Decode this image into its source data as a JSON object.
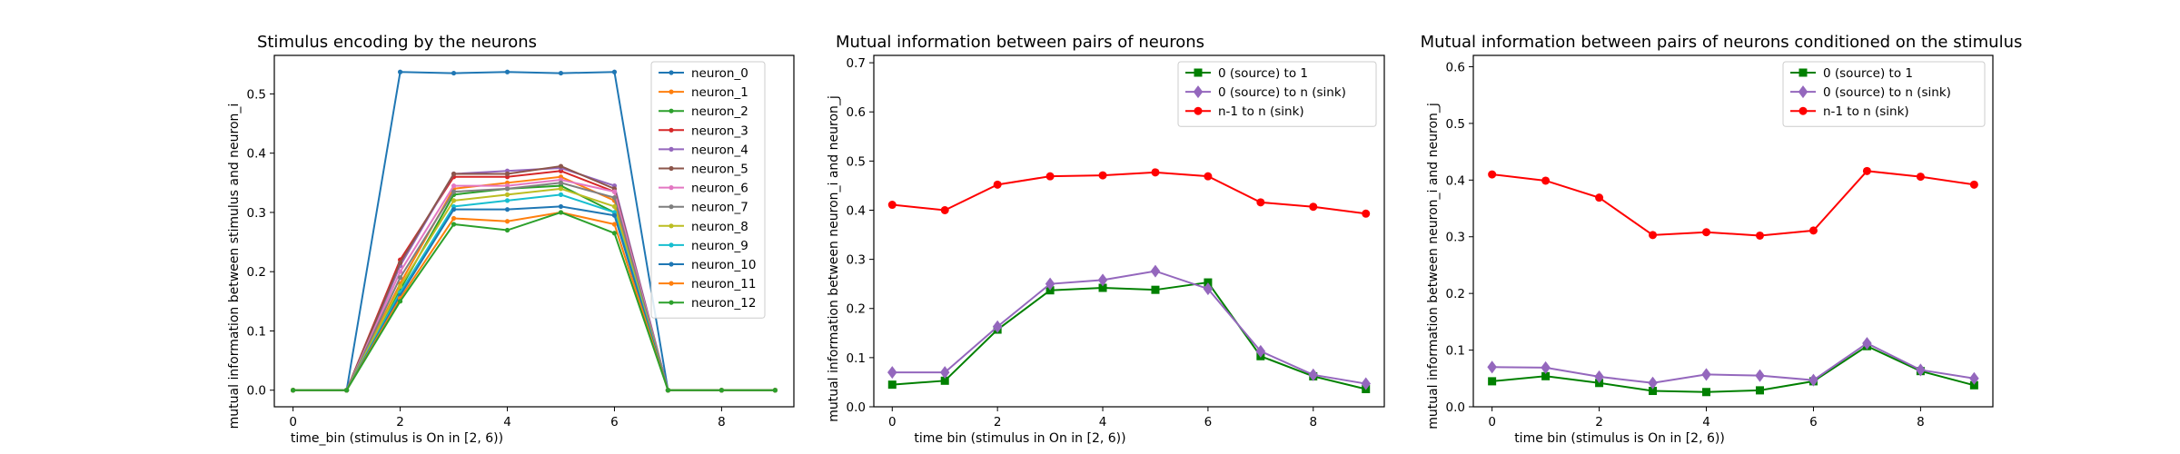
{
  "chart_data": [
    {
      "type": "line",
      "title": "Stimulus encoding by the neurons",
      "xlabel": "time_bin (stimulus is On in [2, 6))",
      "ylabel": "mutual information between stimulus and neuron_i",
      "xlim": [
        -0.35,
        9.35
      ],
      "ylim": [
        -0.028,
        0.565
      ],
      "xticks": [
        0,
        2,
        4,
        6,
        8
      ],
      "yticks": [
        0.0,
        0.1,
        0.2,
        0.3,
        0.4,
        0.5
      ],
      "legend_position": "upper-right",
      "x": [
        0,
        1,
        2,
        3,
        4,
        5,
        6,
        7,
        8,
        9
      ],
      "series": [
        {
          "name": "neuron_0",
          "color": "#1f77b4",
          "marker": "dot",
          "values": [
            0,
            0,
            0.537,
            0.535,
            0.537,
            0.535,
            0.537,
            0,
            0,
            0
          ]
        },
        {
          "name": "neuron_1",
          "color": "#ff7f0e",
          "marker": "dot",
          "values": [
            0,
            0,
            0.18,
            0.34,
            0.35,
            0.36,
            0.32,
            0,
            0,
            0
          ]
        },
        {
          "name": "neuron_2",
          "color": "#2ca02c",
          "marker": "dot",
          "values": [
            0,
            0,
            0.17,
            0.33,
            0.34,
            0.345,
            0.3,
            0,
            0,
            0
          ]
        },
        {
          "name": "neuron_3",
          "color": "#d62728",
          "marker": "dot",
          "values": [
            0,
            0,
            0.22,
            0.36,
            0.36,
            0.37,
            0.335,
            0,
            0,
            0
          ]
        },
        {
          "name": "neuron_4",
          "color": "#9467bd",
          "marker": "dot",
          "values": [
            0,
            0,
            0.21,
            0.365,
            0.37,
            0.375,
            0.345,
            0,
            0,
            0
          ]
        },
        {
          "name": "neuron_5",
          "color": "#8c564b",
          "marker": "dot",
          "values": [
            0,
            0,
            0.215,
            0.365,
            0.365,
            0.378,
            0.34,
            0,
            0,
            0
          ]
        },
        {
          "name": "neuron_6",
          "color": "#e377c2",
          "marker": "dot",
          "values": [
            0,
            0,
            0.2,
            0.345,
            0.345,
            0.355,
            0.335,
            0,
            0,
            0
          ]
        },
        {
          "name": "neuron_7",
          "color": "#7f7f7f",
          "marker": "dot",
          "values": [
            0,
            0,
            0.19,
            0.335,
            0.34,
            0.35,
            0.325,
            0,
            0,
            0
          ]
        },
        {
          "name": "neuron_8",
          "color": "#bcbd22",
          "marker": "dot",
          "values": [
            0,
            0,
            0.175,
            0.32,
            0.33,
            0.34,
            0.31,
            0,
            0,
            0
          ]
        },
        {
          "name": "neuron_9",
          "color": "#17becf",
          "marker": "dot",
          "values": [
            0,
            0,
            0.165,
            0.31,
            0.32,
            0.33,
            0.3,
            0,
            0,
            0
          ]
        },
        {
          "name": "neuron_10",
          "color": "#1f77b4",
          "marker": "dot",
          "values": [
            0,
            0,
            0.16,
            0.305,
            0.305,
            0.31,
            0.295,
            0,
            0,
            0
          ]
        },
        {
          "name": "neuron_11",
          "color": "#ff7f0e",
          "marker": "dot",
          "values": [
            0,
            0,
            0.155,
            0.29,
            0.285,
            0.3,
            0.28,
            0,
            0,
            0
          ]
        },
        {
          "name": "neuron_12",
          "color": "#2ca02c",
          "marker": "dot",
          "values": [
            0,
            0,
            0.15,
            0.28,
            0.27,
            0.3,
            0.265,
            0,
            0,
            0
          ]
        }
      ]
    },
    {
      "type": "line",
      "title": "Mutual information between pairs of neurons",
      "xlabel": "time bin (stimulus in On in [2, 6))",
      "ylabel": "mutual information between neuron_i and neuron_j",
      "xlim": [
        -0.35,
        9.35
      ],
      "ylim": [
        0,
        0.715
      ],
      "xticks": [
        0,
        2,
        4,
        6,
        8
      ],
      "yticks": [
        0.0,
        0.1,
        0.2,
        0.3,
        0.4,
        0.5,
        0.6,
        0.7
      ],
      "legend_position": "upper-right",
      "x": [
        0,
        1,
        2,
        3,
        4,
        5,
        6,
        7,
        8,
        9
      ],
      "series": [
        {
          "name": "0 (source) to 1",
          "color": "#008000",
          "marker": "square",
          "values": [
            0.045,
            0.053,
            0.157,
            0.237,
            0.242,
            0.238,
            0.253,
            0.103,
            0.062,
            0.036
          ]
        },
        {
          "name": "0 (source) to n (sink)",
          "color": "#9467bd",
          "marker": "diamond",
          "values": [
            0.07,
            0.07,
            0.163,
            0.25,
            0.258,
            0.276,
            0.24,
            0.113,
            0.065,
            0.047
          ]
        },
        {
          "name": "n-1 to n (sink)",
          "color": "#ff0000",
          "marker": "circle",
          "values": [
            0.411,
            0.4,
            0.452,
            0.469,
            0.471,
            0.477,
            0.469,
            0.416,
            0.407,
            0.393
          ]
        }
      ]
    },
    {
      "type": "line",
      "title": "Mutual information between pairs of neurons conditioned on the stimulus",
      "xlabel": "time bin (stimulus is On in [2, 6))",
      "ylabel": "mutual information between neuron_i and neuron_j",
      "xlim": [
        -0.35,
        9.35
      ],
      "ylim": [
        0,
        0.62
      ],
      "xticks": [
        0,
        2,
        4,
        6,
        8
      ],
      "yticks": [
        0.0,
        0.1,
        0.2,
        0.3,
        0.4,
        0.5,
        0.6
      ],
      "legend_position": "upper-right",
      "x": [
        0,
        1,
        2,
        3,
        4,
        5,
        6,
        7,
        8,
        9
      ],
      "series": [
        {
          "name": "0 (source) to 1",
          "color": "#008000",
          "marker": "square",
          "values": [
            0.045,
            0.054,
            0.042,
            0.028,
            0.026,
            0.029,
            0.045,
            0.107,
            0.063,
            0.038
          ]
        },
        {
          "name": "0 (source) to n (sink)",
          "color": "#9467bd",
          "marker": "diamond",
          "values": [
            0.07,
            0.069,
            0.053,
            0.042,
            0.057,
            0.055,
            0.047,
            0.112,
            0.065,
            0.05
          ]
        },
        {
          "name": "n-1 to n (sink)",
          "color": "#ff0000",
          "marker": "circle",
          "values": [
            0.41,
            0.399,
            0.369,
            0.303,
            0.308,
            0.302,
            0.311,
            0.416,
            0.406,
            0.392
          ]
        }
      ]
    }
  ]
}
